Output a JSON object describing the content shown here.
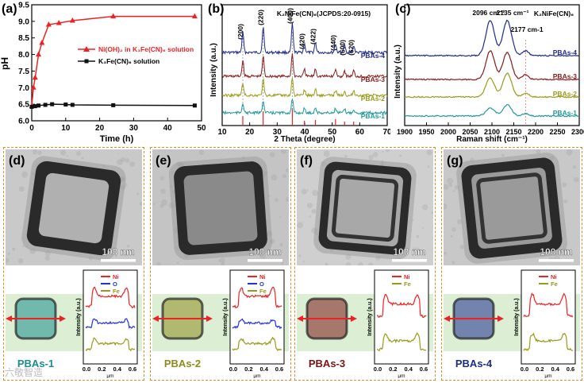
{
  "chart_data": [
    {
      "panel": "(a)",
      "type": "line",
      "xlabel": "Time (h)",
      "ylabel": "pH",
      "xlim": [
        0,
        50
      ],
      "ylim": [
        6.0,
        9.5
      ],
      "xticks": [
        "0",
        "10",
        "20",
        "30",
        "40",
        "50"
      ],
      "yticks": [
        "6.0",
        "6.5",
        "7.0",
        "7.5",
        "8.0",
        "8.5",
        "9.0",
        "9.5"
      ],
      "series": [
        {
          "name": "Ni(OH)₂ in K₃Fe(CN)₆ solution",
          "color": "#ee2222",
          "marker": "triangle",
          "x": [
            0,
            0.5,
            1,
            2,
            3,
            5,
            8,
            12,
            24,
            48
          ],
          "y": [
            6.45,
            7.0,
            7.3,
            8.0,
            8.35,
            8.9,
            8.95,
            9.02,
            9.15,
            9.15
          ]
        },
        {
          "name": "K₃Fe(CN)₆ solution",
          "color": "#111111",
          "marker": "square",
          "x": [
            0,
            1,
            2,
            4,
            6,
            10,
            12,
            24,
            48
          ],
          "y": [
            6.42,
            6.44,
            6.46,
            6.48,
            6.5,
            6.49,
            6.48,
            6.47,
            6.46
          ]
        }
      ]
    },
    {
      "panel": "(b)",
      "type": "line",
      "xlabel": "2 Theta (degree)",
      "ylabel": "Intensity (a.u.)",
      "xlim": [
        10,
        70
      ],
      "xticks": [
        "10",
        "20",
        "30",
        "40",
        "50",
        "60",
        "70"
      ],
      "reference": "K₂NiFe(CN)₆(JCPDS:20-0915)",
      "peaks": [
        {
          "label": "(200)",
          "x": 17.5
        },
        {
          "label": "(220)",
          "x": 24.9
        },
        {
          "label": "(400)",
          "x": 35.5
        },
        {
          "label": "(420)",
          "x": 39.9
        },
        {
          "label": "(422)",
          "x": 43.9
        },
        {
          "label": "(440)",
          "x": 51.2
        },
        {
          "label": "(600)",
          "x": 54.5
        },
        {
          "label": "(620)",
          "x": 57.8
        }
      ],
      "series": [
        {
          "name": "PBAs-4",
          "color": "#1f2a8c"
        },
        {
          "name": "PBAs-3",
          "color": "#8b1a1a"
        },
        {
          "name": "PBAs-2",
          "color": "#9a9a1a"
        },
        {
          "name": "PBAs-1",
          "color": "#1f9a9a"
        }
      ]
    },
    {
      "panel": "(c)",
      "type": "line",
      "xlabel": "Raman shift (cm⁻¹)",
      "ylabel": "Intensity (a.u.)",
      "xlim": [
        1900,
        2300
      ],
      "xticks": [
        "1900",
        "1950",
        "2000",
        "2050",
        "2100",
        "2150",
        "2200",
        "2250",
        "2300"
      ],
      "reference": "K₂NiFe(CN)₆",
      "annotations": [
        "2096 cm⁻¹",
        "2135 cm⁻¹",
        "2177 cm-1"
      ],
      "peaks": [
        2096,
        2135,
        2177
      ],
      "series": [
        {
          "name": "PBAs-4",
          "color": "#1f2a8c"
        },
        {
          "name": "PBAs-3",
          "color": "#8b1a1a"
        },
        {
          "name": "PBAs-2",
          "color": "#9a9a1a"
        },
        {
          "name": "PBAs-1",
          "color": "#1f9a9a"
        }
      ]
    }
  ],
  "tem_panels": [
    {
      "label": "(d)",
      "sample": "PBAs-1",
      "scale": "100 nm",
      "sample_color": "#1c8c8c",
      "elements": [
        {
          "name": "Ni",
          "color": "#ee2222"
        },
        {
          "name": "O",
          "color": "#2233dd"
        },
        {
          "name": "Fe",
          "color": "#9a9a1a"
        }
      ]
    },
    {
      "label": "(e)",
      "sample": "PBAs-2",
      "scale": "100 nm",
      "sample_color": "#8c8c1c",
      "elements": [
        {
          "name": "Ni",
          "color": "#ee2222"
        },
        {
          "name": "O",
          "color": "#2233dd"
        },
        {
          "name": "Fe",
          "color": "#9a9a1a"
        }
      ]
    },
    {
      "label": "(f)",
      "sample": "PBAs-3",
      "scale": "100 nm",
      "sample_color": "#7a1414",
      "elements": [
        {
          "name": "Ni",
          "color": "#ee2222"
        },
        {
          "name": "Fe",
          "color": "#9a9a1a"
        }
      ]
    },
    {
      "label": "(g)",
      "sample": "PBAs-4",
      "scale": "100 nm",
      "sample_color": "#1c2a8c",
      "elements": [
        {
          "name": "Ni",
          "color": "#ee2222"
        },
        {
          "name": "Fe",
          "color": "#9a9a1a"
        }
      ]
    }
  ],
  "linescan_axis": {
    "xlabel": "μm",
    "ylabel": "Intensity (a.u.)",
    "xticks": [
      "0.0",
      "0.2",
      "0.4",
      "0.6"
    ]
  },
  "watermark": "六敬智造"
}
